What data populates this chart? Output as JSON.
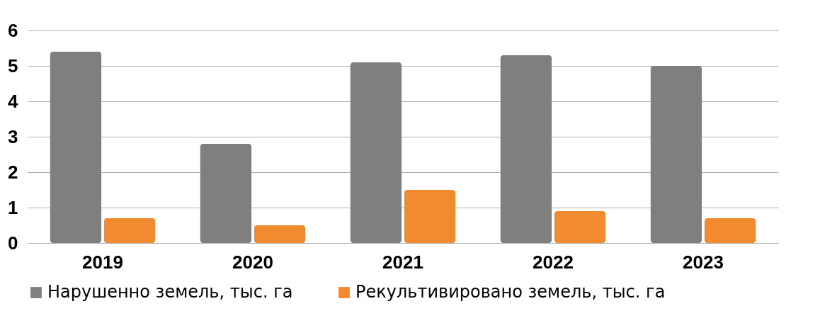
{
  "chart_data": {
    "type": "bar",
    "categories": [
      "2019",
      "2020",
      "2021",
      "2022",
      "2023"
    ],
    "series": [
      {
        "name": "Нарушенно земель, тыс. га",
        "color": "#7f7f7f",
        "values": [
          5.4,
          2.8,
          5.1,
          5.3,
          5.0
        ]
      },
      {
        "name": "Рекультивировано земель, тыс. га",
        "color": "#f28a30",
        "values": [
          0.7,
          0.5,
          1.5,
          0.9,
          0.7
        ]
      }
    ],
    "ylim": [
      0,
      6
    ],
    "yticks": [
      0,
      1,
      2,
      3,
      4,
      5,
      6
    ],
    "grid": "y",
    "legend": "bottom"
  }
}
